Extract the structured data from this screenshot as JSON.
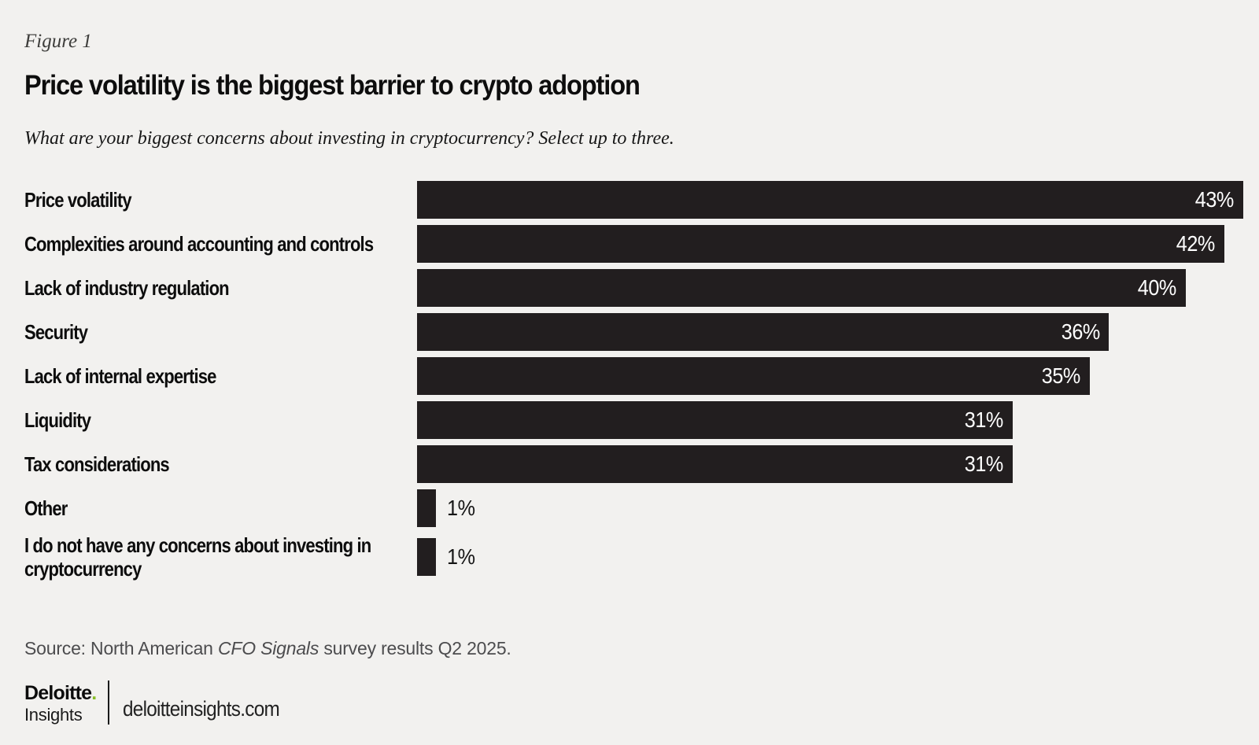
{
  "page": {
    "figure_label": "Figure 1",
    "title": "Price volatility is the biggest barrier to crypto adoption",
    "subtitle": "What are your biggest concerns about investing in cryptocurrency? Select up to three."
  },
  "chart_data": {
    "type": "bar",
    "orientation": "horizontal",
    "title": "Price volatility is the biggest barrier to crypto adoption",
    "categories": [
      "Price volatility",
      "Complexities around accounting and controls",
      "Lack of industry regulation",
      "Security",
      "Lack of internal expertise",
      "Liquidity",
      "Tax considerations",
      "Other",
      "I do not have any concerns about investing in cryptocurrency"
    ],
    "values": [
      43,
      42,
      40,
      36,
      35,
      31,
      31,
      1,
      1
    ],
    "value_labels": [
      "43%",
      "42%",
      "40%",
      "36%",
      "35%",
      "31%",
      "31%",
      "1%",
      "1%"
    ],
    "value_suffix": "%",
    "xlim": [
      0,
      43
    ],
    "grid": false,
    "legend": false,
    "bar_color": "#221e1f",
    "inside_label_color": "#ffffff",
    "outside_label_color": "#151515",
    "inside_label_min_value": 5
  },
  "source": {
    "prefix": "Source: North American ",
    "italic_part": "CFO Signals",
    "suffix": " survey results Q2 2025."
  },
  "footer": {
    "brand_name": "Deloitte",
    "brand_dot": ".",
    "brand_sub": "Insights",
    "website": "deloitteinsights.com"
  },
  "colors": {
    "background": "#f2f1ef",
    "bar": "#221e1f",
    "accent_green": "#86bc25",
    "source_text": "#4c4c4e",
    "text": "#121212"
  }
}
